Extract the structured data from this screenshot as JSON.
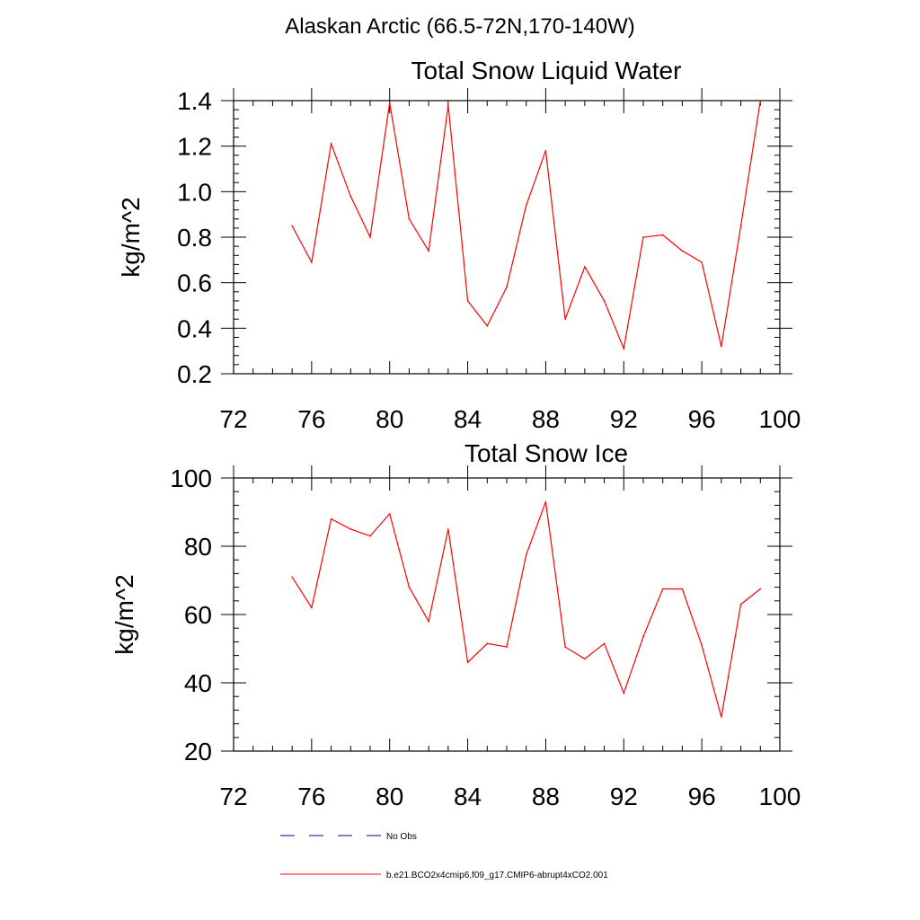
{
  "figure": {
    "title": "Alaskan Arctic (66.5-72N,170-140W)"
  },
  "chart_data": [
    {
      "type": "line",
      "title": "Total Snow Liquid Water",
      "xlabel": "",
      "ylabel": "kg/m^2",
      "xlim": [
        72,
        100
      ],
      "ylim": [
        0.2,
        1.4
      ],
      "x_ticks": [
        "72",
        "76",
        "80",
        "84",
        "88",
        "92",
        "96",
        "100"
      ],
      "y_ticks": [
        "0.2",
        "0.4",
        "0.6",
        "0.8",
        "1.0",
        "1.2",
        "1.4"
      ],
      "x": [
        75,
        76,
        77,
        78,
        79,
        80,
        81,
        82,
        83,
        84,
        85,
        86,
        87,
        88,
        89,
        90,
        91,
        92,
        93,
        94,
        95,
        96,
        97,
        98,
        99
      ],
      "series": [
        {
          "name": "b.e21.BCO2x4cmip6.f09_g17.CMIP6-abrupt4xCO2.001",
          "color": "#ff0000",
          "values": [
            0.85,
            0.69,
            1.21,
            0.98,
            0.8,
            1.39,
            0.88,
            0.74,
            1.38,
            0.52,
            0.41,
            0.58,
            0.94,
            1.18,
            0.44,
            0.67,
            0.52,
            0.31,
            0.8,
            0.81,
            0.74,
            0.69,
            0.32,
            0.85,
            1.4
          ]
        }
      ]
    },
    {
      "type": "line",
      "title": "Total Snow Ice",
      "xlabel": "",
      "ylabel": "kg/m^2",
      "xlim": [
        72,
        100
      ],
      "ylim": [
        20,
        100
      ],
      "x_ticks": [
        "72",
        "76",
        "80",
        "84",
        "88",
        "92",
        "96",
        "100"
      ],
      "y_ticks": [
        "20",
        "40",
        "60",
        "80",
        "100"
      ],
      "x": [
        75,
        76,
        77,
        78,
        79,
        80,
        81,
        82,
        83,
        84,
        85,
        86,
        87,
        88,
        89,
        90,
        91,
        92,
        93,
        94,
        95,
        96,
        97,
        98,
        99
      ],
      "series": [
        {
          "name": "b.e21.BCO2x4cmip6.f09_g17.CMIP6-abrupt4xCO2.001",
          "color": "#ff0000",
          "values": [
            71,
            62,
            88,
            85,
            83,
            89.5,
            68,
            58,
            85,
            46,
            51.5,
            50.5,
            77.5,
            93,
            50.5,
            47,
            51.5,
            37,
            53.5,
            67.5,
            67.5,
            51,
            30,
            63,
            67.5
          ]
        }
      ]
    }
  ],
  "legend": {
    "items": [
      {
        "label": "No Obs",
        "color": "#000080",
        "style": "dashed"
      },
      {
        "label": "b.e21.BCO2x4cmip6.f09_g17.CMIP6-abrupt4xCO2.001",
        "color": "#ff0000",
        "style": "solid"
      }
    ]
  }
}
